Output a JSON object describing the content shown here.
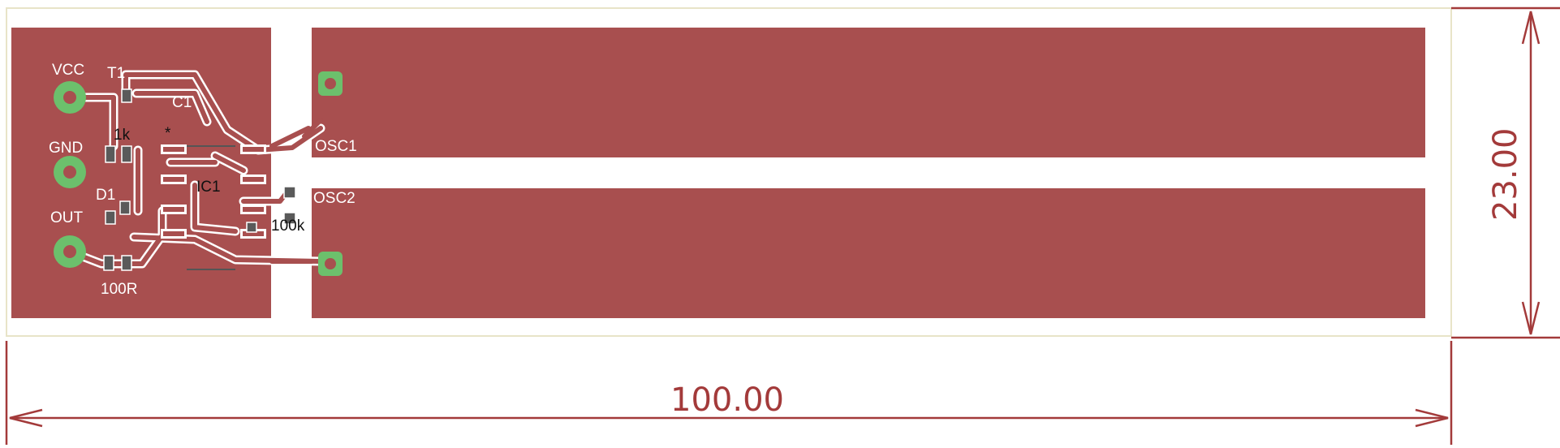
{
  "colors": {
    "copper": "#a84f4f",
    "trace": "#a84f4f",
    "silkscreen": "#ffffff",
    "via": "#6cc06c",
    "dimension": "#a33a3a",
    "outline": "#e8e4c8"
  },
  "components": {
    "vcc": "VCC",
    "gnd": "GND",
    "out": "OUT",
    "t1": "T1",
    "c1": "C1",
    "r1": "1k",
    "d1": "D1",
    "ic1": "IC1",
    "r2": "100k",
    "r3": "100R",
    "osc1": "OSC1",
    "osc2": "OSC2"
  },
  "dimensions": {
    "width": "100.00",
    "height": "23.00"
  }
}
